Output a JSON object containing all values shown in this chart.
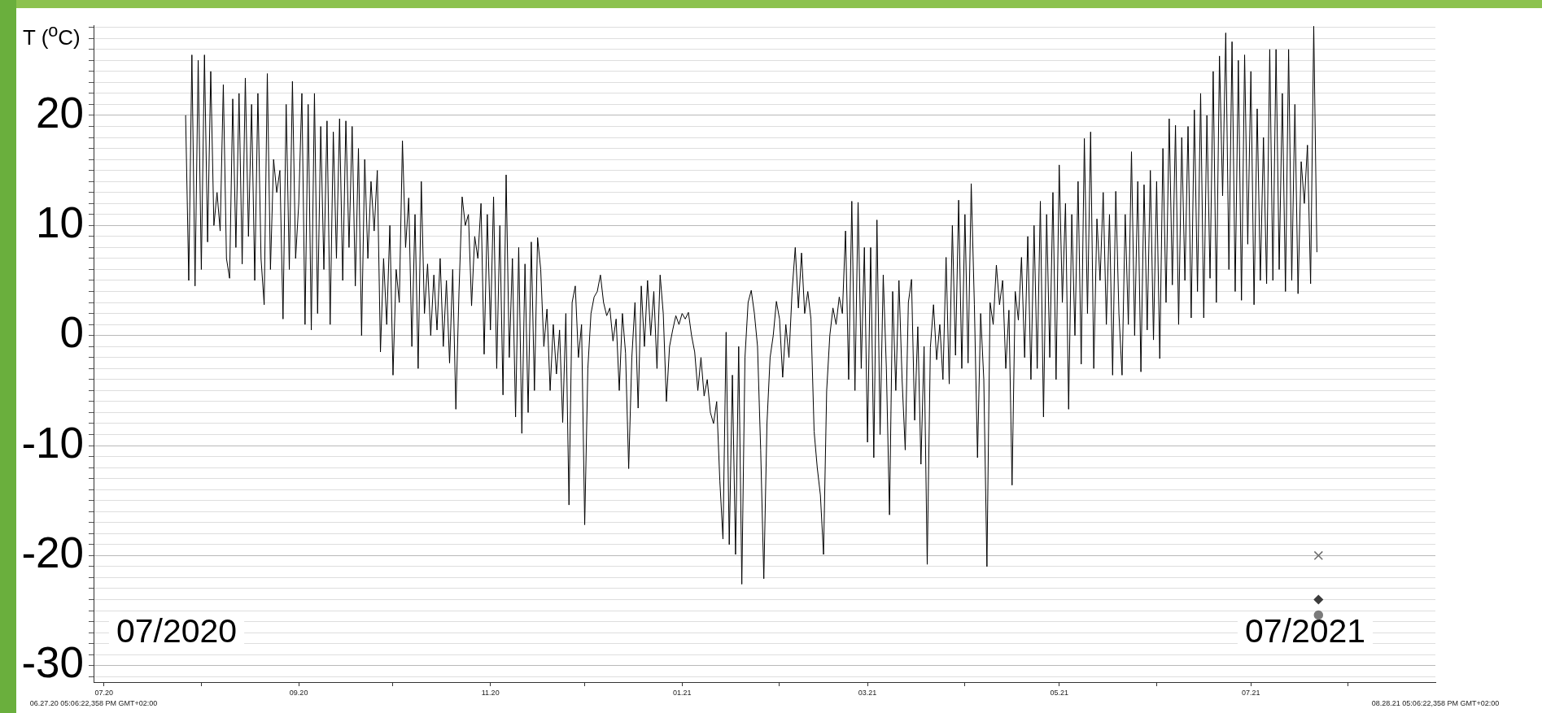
{
  "chart_data": {
    "type": "line",
    "ylabel": "T ($^{o}$C)",
    "annotations": [
      "07/2020",
      "07/2021",
      "06.27.20 05:06:22,358 PM GMT+02:00",
      "08.28.21 05:06:22,358 PM GMT+02:00"
    ],
    "xlim": [
      "2020-06-27T17:06",
      "2021-08-28T17:06"
    ],
    "xticks": [
      {
        "value": "2020-07-01",
        "label": "07.20"
      },
      {
        "value": "2020-08-01",
        "label": null
      },
      {
        "value": "2020-09-01",
        "label": "09.20"
      },
      {
        "value": "2020-10-01",
        "label": null
      },
      {
        "value": "2020-11-01",
        "label": "11.20"
      },
      {
        "value": "2020-12-01",
        "label": null
      },
      {
        "value": "2021-01-01",
        "label": "01.21"
      },
      {
        "value": "2021-02-01",
        "label": null
      },
      {
        "value": "2021-03-01",
        "label": "03.21"
      },
      {
        "value": "2021-04-01",
        "label": null
      },
      {
        "value": "2021-05-01",
        "label": "05.21"
      },
      {
        "value": "2021-06-01",
        "label": null
      },
      {
        "value": "2021-07-01",
        "label": "07.21"
      },
      {
        "value": "2021-08-01",
        "label": null
      }
    ],
    "ylim": [
      -31.5,
      28.2
    ],
    "yticks": [
      {
        "value": -31,
        "label": null
      },
      -30,
      {
        "value": -29,
        "label": null
      },
      {
        "value": -28,
        "label": null
      },
      {
        "value": -27,
        "label": null
      },
      {
        "value": -26,
        "label": null
      },
      {
        "value": -25,
        "label": null
      },
      {
        "value": -24,
        "label": null
      },
      {
        "value": -23,
        "label": null
      },
      {
        "value": -22,
        "label": null
      },
      {
        "value": -21,
        "label": null
      },
      -20,
      {
        "value": -19,
        "label": null
      },
      {
        "value": -18,
        "label": null
      },
      {
        "value": -17,
        "label": null
      },
      {
        "value": -16,
        "label": null
      },
      {
        "value": -15,
        "label": null
      },
      {
        "value": -14,
        "label": null
      },
      {
        "value": -13,
        "label": null
      },
      {
        "value": -12,
        "label": null
      },
      {
        "value": -11,
        "label": null
      },
      -10,
      {
        "value": -9,
        "label": null
      },
      {
        "value": -8,
        "label": null
      },
      {
        "value": -7,
        "label": null
      },
      {
        "value": -6,
        "label": null
      },
      {
        "value": -5,
        "label": null
      },
      {
        "value": -4,
        "label": null
      },
      {
        "value": -3,
        "label": null
      },
      {
        "value": -2,
        "label": null
      },
      {
        "value": -1,
        "label": null
      },
      0,
      {
        "value": 1,
        "label": null
      },
      {
        "value": 2,
        "label": null
      },
      {
        "value": 3,
        "label": null
      },
      {
        "value": 4,
        "label": null
      },
      {
        "value": 5,
        "label": null
      },
      {
        "value": 6,
        "label": null
      },
      {
        "value": 7,
        "label": null
      },
      {
        "value": 8,
        "label": null
      },
      {
        "value": 9,
        "label": null
      },
      10,
      {
        "value": 11,
        "label": null
      },
      {
        "value": 12,
        "label": null
      },
      {
        "value": 13,
        "label": null
      },
      {
        "value": 14,
        "label": null
      },
      {
        "value": 15,
        "label": null
      },
      {
        "value": 16,
        "label": null
      },
      {
        "value": 17,
        "label": null
      },
      {
        "value": 18,
        "label": null
      },
      {
        "value": 19,
        "label": null
      },
      20,
      {
        "value": 21,
        "label": null
      },
      {
        "value": 22,
        "label": null
      },
      {
        "value": 23,
        "label": null
      },
      {
        "value": 24,
        "label": null
      },
      {
        "value": 25,
        "label": null
      },
      {
        "value": 26,
        "label": null
      },
      {
        "value": 27,
        "label": null
      },
      {
        "value": 28,
        "label": null
      }
    ],
    "grid": "y",
    "x": [
      "2020-07-27",
      "2020-07-28",
      "2020-07-29",
      "2020-07-30",
      "2020-07-31",
      "2020-08-01",
      "2020-08-02",
      "2020-08-03",
      "2020-08-04",
      "2020-08-05",
      "2020-08-06",
      "2020-08-07",
      "2020-08-08",
      "2020-08-09",
      "2020-08-10",
      "2020-08-11",
      "2020-08-12",
      "2020-08-13",
      "2020-08-14",
      "2020-08-15",
      "2020-08-16",
      "2020-08-17",
      "2020-08-18",
      "2020-08-19",
      "2020-08-20",
      "2020-08-21",
      "2020-08-22",
      "2020-08-23",
      "2020-08-24",
      "2020-08-25",
      "2020-08-26",
      "2020-08-27",
      "2020-08-28",
      "2020-08-29",
      "2020-08-30",
      "2020-08-31",
      "2020-09-01",
      "2020-09-02",
      "2020-09-03",
      "2020-09-04",
      "2020-09-05",
      "2020-09-06",
      "2020-09-07",
      "2020-09-08",
      "2020-09-09",
      "2020-09-10",
      "2020-09-11",
      "2020-09-12",
      "2020-09-13",
      "2020-09-14",
      "2020-09-15",
      "2020-09-16",
      "2020-09-17",
      "2020-09-18",
      "2020-09-19",
      "2020-09-20",
      "2020-09-21",
      "2020-09-22",
      "2020-09-23",
      "2020-09-24",
      "2020-09-25",
      "2020-09-26",
      "2020-09-27",
      "2020-09-28",
      "2020-09-29",
      "2020-09-30",
      "2020-10-01",
      "2020-10-02",
      "2020-10-03",
      "2020-10-04",
      "2020-10-05",
      "2020-10-06",
      "2020-10-07",
      "2020-10-08",
      "2020-10-09",
      "2020-10-10",
      "2020-10-11",
      "2020-10-12",
      "2020-10-13",
      "2020-10-14",
      "2020-10-15",
      "2020-10-16",
      "2020-10-17",
      "2020-10-18",
      "2020-10-19",
      "2020-10-20",
      "2020-10-21",
      "2020-10-22",
      "2020-10-23",
      "2020-10-24",
      "2020-10-25",
      "2020-10-26",
      "2020-10-27",
      "2020-10-28",
      "2020-10-29",
      "2020-10-30",
      "2020-10-31",
      "2020-11-01",
      "2020-11-02",
      "2020-11-03",
      "2020-11-04",
      "2020-11-05",
      "2020-11-06",
      "2020-11-07",
      "2020-11-08",
      "2020-11-09",
      "2020-11-10",
      "2020-11-11",
      "2020-11-12",
      "2020-11-13",
      "2020-11-14",
      "2020-11-15",
      "2020-11-16",
      "2020-11-17",
      "2020-11-18",
      "2020-11-19",
      "2020-11-20",
      "2020-11-21",
      "2020-11-22",
      "2020-11-23",
      "2020-11-24",
      "2020-11-25",
      "2020-11-26",
      "2020-11-27",
      "2020-11-28",
      "2020-11-29",
      "2020-11-30",
      "2020-12-01",
      "2020-12-02",
      "2020-12-03",
      "2020-12-04",
      "2020-12-05",
      "2020-12-06",
      "2020-12-07",
      "2020-12-08",
      "2020-12-09",
      "2020-12-10",
      "2020-12-11",
      "2020-12-12",
      "2020-12-13",
      "2020-12-14",
      "2020-12-15",
      "2020-12-16",
      "2020-12-17",
      "2020-12-18",
      "2020-12-19",
      "2020-12-20",
      "2020-12-21",
      "2020-12-22",
      "2020-12-23",
      "2020-12-24",
      "2020-12-25",
      "2020-12-26",
      "2020-12-27",
      "2020-12-28",
      "2020-12-29",
      "2020-12-30",
      "2020-12-31",
      "2021-01-01",
      "2021-01-02",
      "2021-01-03",
      "2021-01-04",
      "2021-01-05",
      "2021-01-06",
      "2021-01-07",
      "2021-01-08",
      "2021-01-09",
      "2021-01-10",
      "2021-01-11",
      "2021-01-12",
      "2021-01-13",
      "2021-01-14",
      "2021-01-15",
      "2021-01-16",
      "2021-01-17",
      "2021-01-18",
      "2021-01-19",
      "2021-01-20",
      "2021-01-21",
      "2021-01-22",
      "2021-01-23",
      "2021-01-24",
      "2021-01-25",
      "2021-01-26",
      "2021-01-27",
      "2021-01-28",
      "2021-01-29",
      "2021-01-30",
      "2021-01-31",
      "2021-02-01",
      "2021-02-02",
      "2021-02-03",
      "2021-02-04",
      "2021-02-05",
      "2021-02-06",
      "2021-02-07",
      "2021-02-08",
      "2021-02-09",
      "2021-02-10",
      "2021-02-11",
      "2021-02-12",
      "2021-02-13",
      "2021-02-14",
      "2021-02-15",
      "2021-02-16",
      "2021-02-17",
      "2021-02-18",
      "2021-02-19",
      "2021-02-20",
      "2021-02-21",
      "2021-02-22",
      "2021-02-23",
      "2021-02-24",
      "2021-02-25",
      "2021-02-26",
      "2021-02-27",
      "2021-02-28",
      "2021-03-01",
      "2021-03-02",
      "2021-03-03",
      "2021-03-04",
      "2021-03-05",
      "2021-03-06",
      "2021-03-07",
      "2021-03-08",
      "2021-03-09",
      "2021-03-10",
      "2021-03-11",
      "2021-03-12",
      "2021-03-13",
      "2021-03-14",
      "2021-03-15",
      "2021-03-16",
      "2021-03-17",
      "2021-03-18",
      "2021-03-19",
      "2021-03-20",
      "2021-03-21",
      "2021-03-22",
      "2021-03-23",
      "2021-03-24",
      "2021-03-25",
      "2021-03-26",
      "2021-03-27",
      "2021-03-28",
      "2021-03-29",
      "2021-03-30",
      "2021-03-31",
      "2021-04-01",
      "2021-04-02",
      "2021-04-03",
      "2021-04-04",
      "2021-04-05",
      "2021-04-06",
      "2021-04-07",
      "2021-04-08",
      "2021-04-09",
      "2021-04-10",
      "2021-04-11",
      "2021-04-12",
      "2021-04-13",
      "2021-04-14",
      "2021-04-15",
      "2021-04-16",
      "2021-04-17",
      "2021-04-18",
      "2021-04-19",
      "2021-04-20",
      "2021-04-21",
      "2021-04-22",
      "2021-04-23",
      "2021-04-24",
      "2021-04-25",
      "2021-04-26",
      "2021-04-27",
      "2021-04-28",
      "2021-04-29",
      "2021-04-30",
      "2021-05-01",
      "2021-05-02",
      "2021-05-03",
      "2021-05-04",
      "2021-05-05",
      "2021-05-06",
      "2021-05-07",
      "2021-05-08",
      "2021-05-09",
      "2021-05-10",
      "2021-05-11",
      "2021-05-12",
      "2021-05-13",
      "2021-05-14",
      "2021-05-15",
      "2021-05-16",
      "2021-05-17",
      "2021-05-18",
      "2021-05-19",
      "2021-05-20",
      "2021-05-21",
      "2021-05-22",
      "2021-05-23",
      "2021-05-24",
      "2021-05-25",
      "2021-05-26",
      "2021-05-27",
      "2021-05-28",
      "2021-05-29",
      "2021-05-30",
      "2021-05-31",
      "2021-06-01",
      "2021-06-02",
      "2021-06-03",
      "2021-06-04",
      "2021-06-05",
      "2021-06-06",
      "2021-06-07",
      "2021-06-08",
      "2021-06-09",
      "2021-06-10",
      "2021-06-11",
      "2021-06-12",
      "2021-06-13",
      "2021-06-14",
      "2021-06-15",
      "2021-06-16",
      "2021-06-17",
      "2021-06-18",
      "2021-06-19",
      "2021-06-20",
      "2021-06-21",
      "2021-06-22",
      "2021-06-23",
      "2021-06-24",
      "2021-06-25",
      "2021-06-26",
      "2021-06-27",
      "2021-06-28",
      "2021-06-29",
      "2021-06-30",
      "2021-07-01",
      "2021-07-02",
      "2021-07-03",
      "2021-07-04",
      "2021-07-05",
      "2021-07-06",
      "2021-07-07",
      "2021-07-08",
      "2021-07-09",
      "2021-07-10",
      "2021-07-11",
      "2021-07-12",
      "2021-07-13",
      "2021-07-14",
      "2021-07-15",
      "2021-07-16",
      "2021-07-17",
      "2021-07-18",
      "2021-07-19",
      "2021-07-20",
      "2021-07-21",
      "2021-07-22"
    ],
    "series": [
      {
        "color": "#000000",
        "values": [
          20,
          5,
          25.5,
          4.5,
          25,
          6,
          25.5,
          8.5,
          24,
          10,
          13,
          9.5,
          22.8,
          7,
          5.2,
          21.5,
          8,
          22,
          6.5,
          23.4,
          9,
          21,
          5,
          22,
          7,
          2.8,
          23.8,
          6,
          16,
          13,
          15,
          1.5,
          21,
          6,
          23.1,
          7,
          12,
          22,
          1,
          21,
          0.5,
          22,
          2,
          19,
          6,
          19.5,
          1,
          18.5,
          7,
          19.7,
          5,
          19.5,
          8,
          19,
          4.5,
          17,
          0,
          16,
          7,
          14,
          9.5,
          15,
          -1.5,
          7,
          1,
          10,
          -3.6,
          6,
          3,
          17.7,
          8,
          12.5,
          -1,
          11,
          -3,
          14,
          2,
          6.5,
          0,
          5.5,
          0.5,
          7,
          -1,
          5,
          -2.5,
          6,
          -6.7,
          4,
          12.6,
          10,
          11,
          2.7,
          9,
          7,
          12,
          -1.7,
          11,
          0.5,
          12.6,
          -3,
          10,
          -5.4,
          14.6,
          -2,
          7,
          -7.4,
          8,
          -8.9,
          6.5,
          -7,
          8.5,
          -5,
          8.9,
          6,
          -1,
          2.4,
          -5,
          1,
          -3.5,
          0.5,
          -7.9,
          2,
          -15.4,
          3,
          4.5,
          -2,
          1,
          -17.2,
          -3,
          2,
          3.5,
          4,
          5.5,
          3,
          1.8,
          2.5,
          -0.5,
          1.5,
          -5,
          2,
          -1.6,
          -12.1,
          -2,
          3,
          -6.6,
          4.5,
          -1,
          5,
          0,
          4,
          -3,
          5.5,
          2,
          -6,
          -1,
          0.5,
          1.8,
          1,
          2,
          1.5,
          2.1,
          0,
          -1.5,
          -5,
          -2,
          -5.5,
          -4,
          -7,
          -8,
          -6,
          -13.2,
          -18.5,
          0.3,
          -19,
          -3.6,
          -19.9,
          -1,
          -22.6,
          -2,
          3,
          4.1,
          2,
          -1,
          -10.4,
          -22.1,
          -8,
          -2,
          0,
          3.1,
          1.5,
          -3.8,
          1,
          -2,
          4,
          8,
          2.5,
          7.5,
          2,
          4,
          1.5,
          -8.7,
          -12,
          -14.5,
          -19.9,
          -5,
          0,
          2.5,
          1,
          3.5,
          2,
          9.5,
          -4,
          12.2,
          -5,
          12.1,
          -3,
          8,
          -9.7,
          8,
          -11.1,
          10.5,
          -9,
          5.5,
          -3,
          -16.3,
          4,
          -5,
          5,
          -4,
          -10.4,
          3,
          5.1,
          -7.7,
          0.8,
          -11.7,
          -1,
          -20.8,
          -1.1,
          2.8,
          -2.2,
          1,
          -4,
          7.1,
          -4.4,
          10,
          -1.8,
          12.3,
          -3,
          11,
          -2.5,
          13.8,
          2.8,
          -11.1,
          2,
          -4,
          -21,
          3,
          1,
          6.4,
          2.8,
          5,
          -3,
          2.3,
          -13.6,
          4,
          1.4,
          7.1,
          -2,
          9,
          -4,
          10,
          -3,
          12.2,
          -7.4,
          11,
          -2,
          13,
          -4,
          15.5,
          3,
          12,
          -6.7,
          11,
          0,
          14,
          -2.6,
          17.9,
          2,
          18.5,
          -3,
          10.6,
          5,
          13,
          1,
          11,
          -3.6,
          13.1,
          2,
          -3.6,
          11,
          1,
          16.7,
          0,
          14,
          -3.3,
          13.7,
          0.5,
          15,
          -0.4,
          14,
          -2.1,
          17,
          3,
          19.7,
          4.6,
          19.1,
          1,
          18,
          5,
          19,
          1.6,
          20.5,
          4,
          22,
          1.6,
          20,
          5.2,
          24,
          3,
          25.4,
          12.7,
          27.5,
          6,
          26.7,
          4,
          25,
          3.2,
          25.5,
          8.3,
          24,
          2.8,
          20.6,
          5,
          18,
          4.7,
          26,
          5,
          26,
          6,
          22,
          4,
          26,
          5,
          21,
          3.8,
          15.8,
          12,
          17.3,
          4.7,
          28.1,
          7.6
        ]
      },
      {
        "type": "scatter",
        "color": "#6e6e6e",
        "marker": "cross",
        "x": [
          "2021-07-22T12:00"
        ],
        "values": [
          -20
        ]
      },
      {
        "type": "scatter",
        "color": "#3c3c3c",
        "marker": "diamond",
        "x": [
          "2021-07-22T12:00"
        ],
        "values": [
          -24
        ]
      },
      {
        "type": "scatter",
        "color": "#7a7a7a",
        "marker": "circle",
        "x": [
          "2021-07-22T12:00"
        ],
        "values": [
          -25.4
        ]
      }
    ]
  }
}
